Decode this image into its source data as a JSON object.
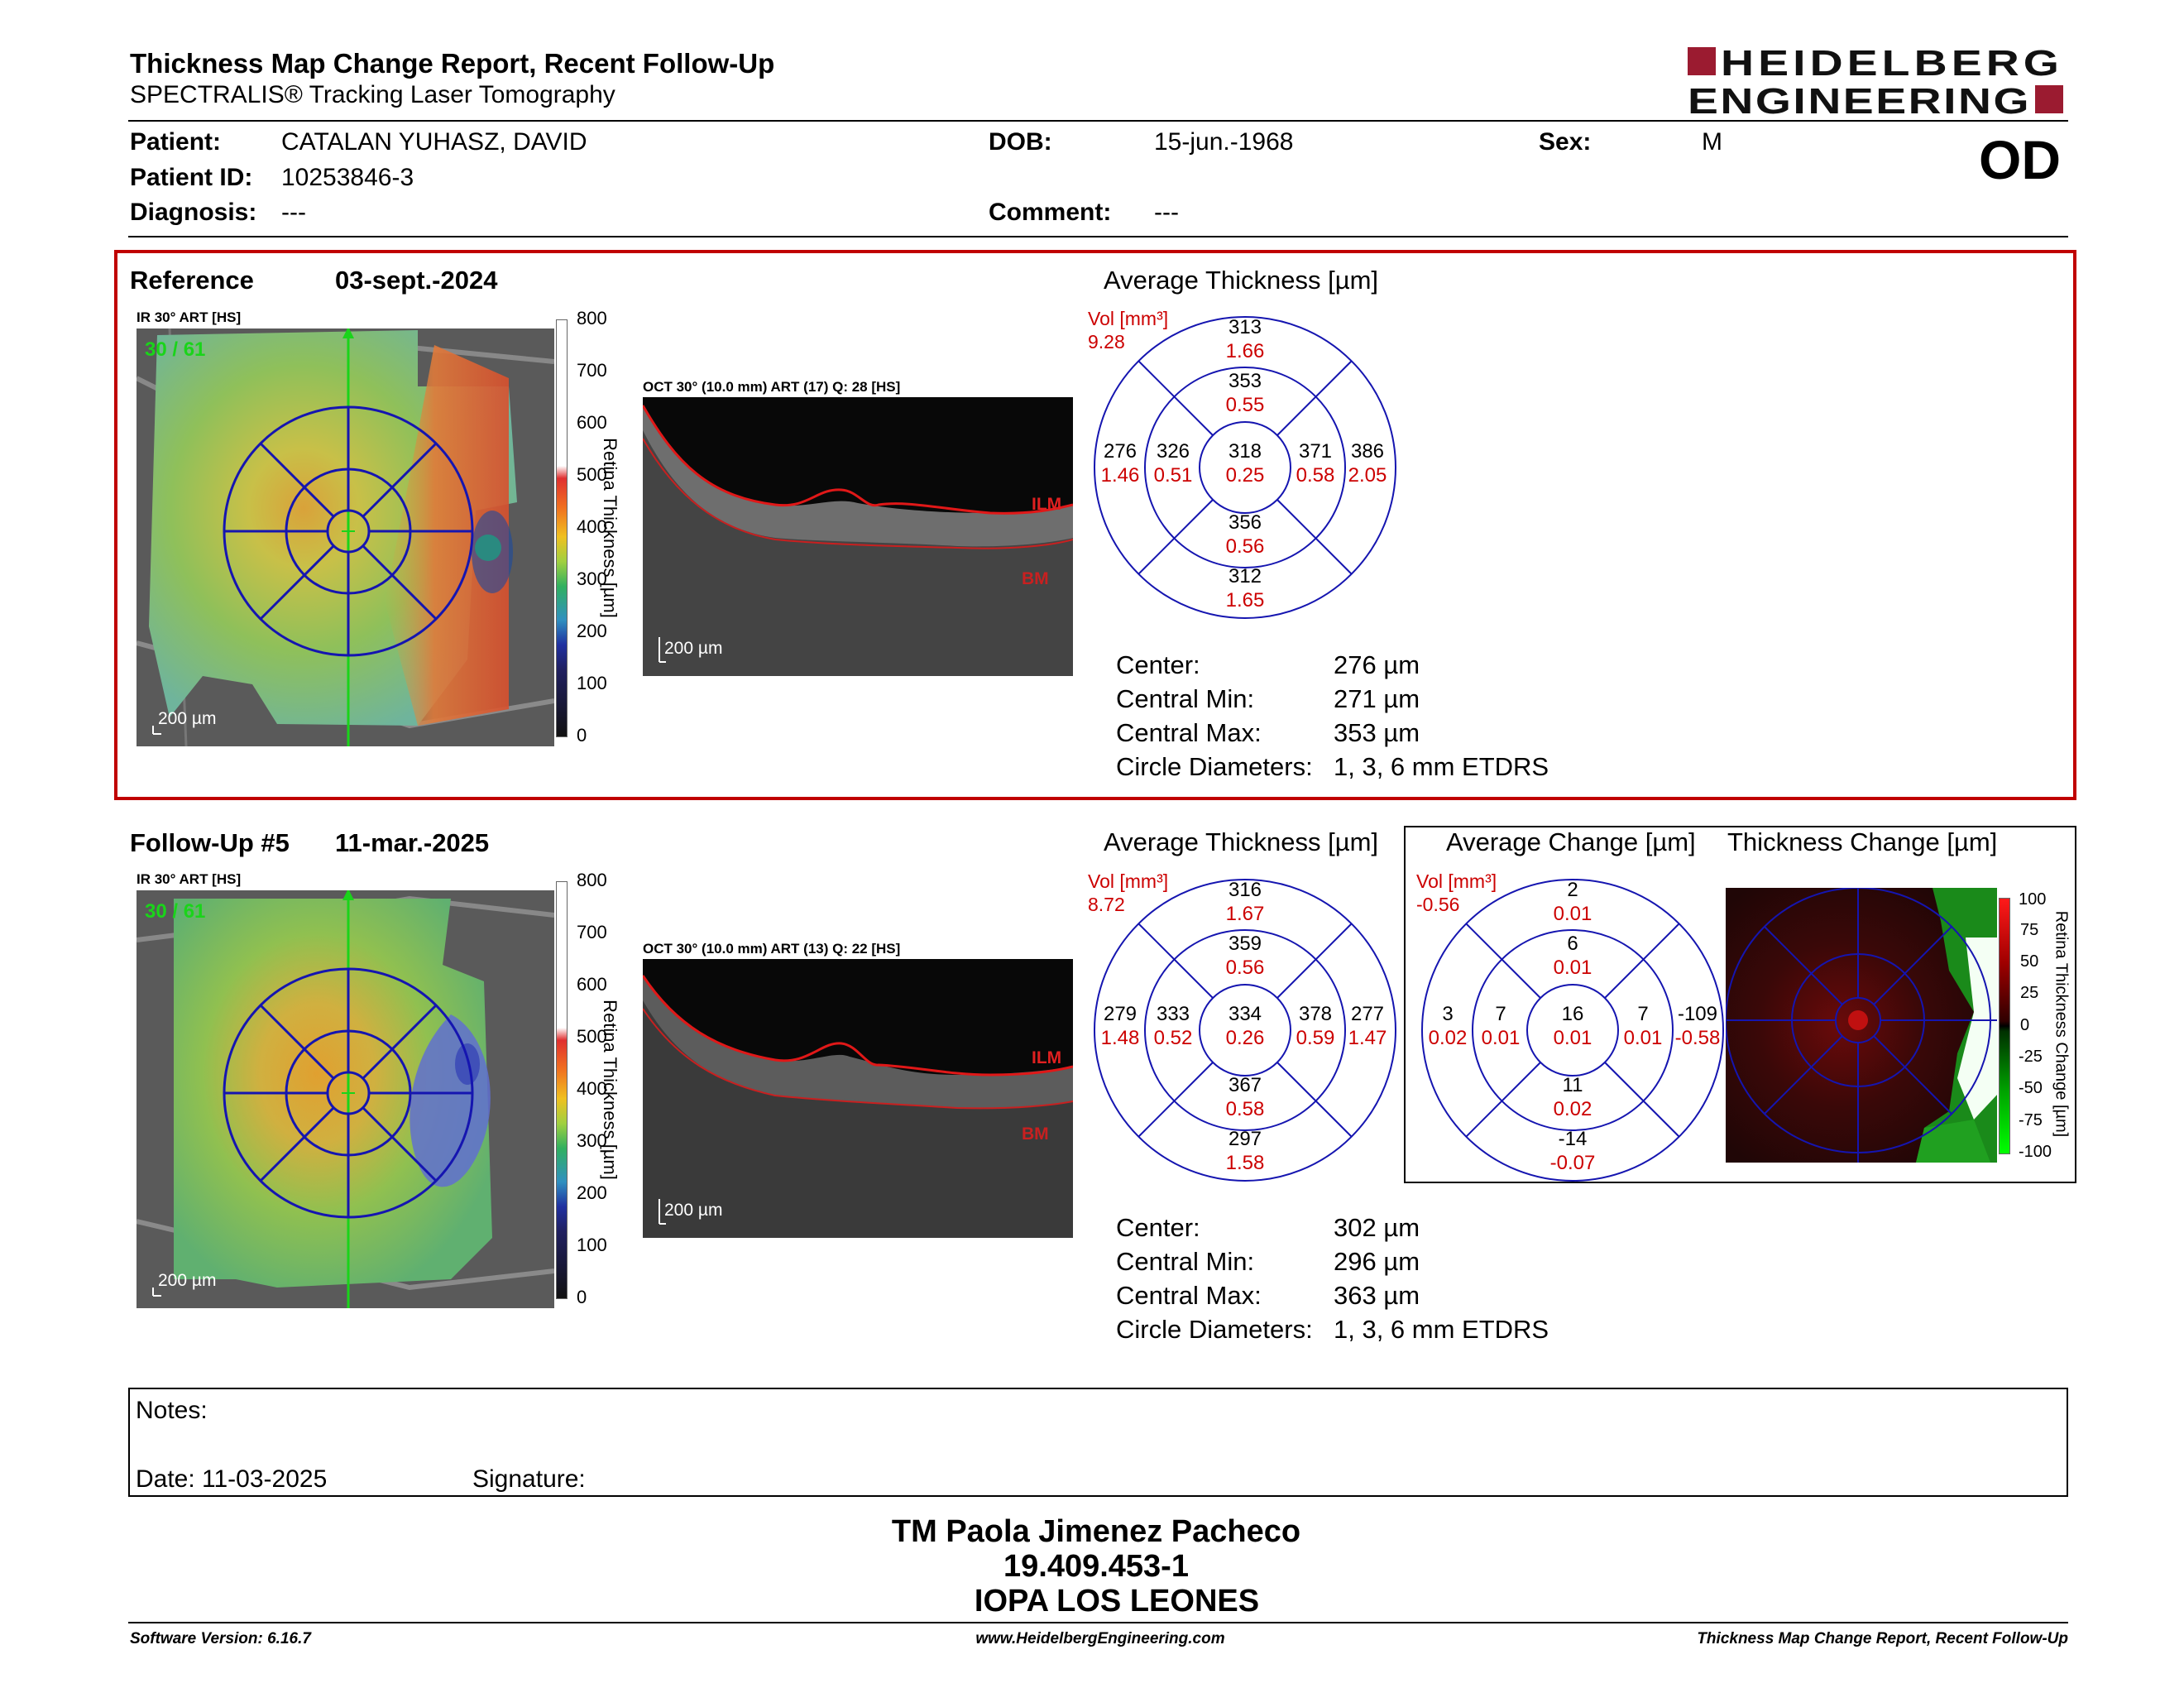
{
  "header": {
    "title": "Thickness Map Change Report, Recent Follow-Up",
    "subtitle": "SPECTRALIS® Tracking Laser Tomography",
    "logo_line1": "HEIDELBERG",
    "logo_line2": "ENGINEERING",
    "eye": "OD"
  },
  "patient": {
    "name_label": "Patient:",
    "name": "CATALAN YUHASZ, DAVID",
    "id_label": "Patient ID:",
    "id": "10253846-3",
    "diagnosis_label": "Diagnosis:",
    "diagnosis": "---",
    "dob_label": "DOB:",
    "dob": "15-jun.-1968",
    "comment_label": "Comment:",
    "comment": "---",
    "sex_label": "Sex:",
    "sex": "M"
  },
  "reference": {
    "label": "Reference",
    "date": "03-sept.-2024",
    "ir_label": "IR 30° ART [HS]",
    "ir_art": "30 / 61",
    "ir_scale": "200 µm",
    "colorbar_ticks": [
      "800",
      "700",
      "600",
      "500",
      "400",
      "300",
      "200",
      "100",
      "0"
    ],
    "colorbar_title": "Retina Thickness [µm]",
    "oct_label": "OCT 30° (10.0 mm) ART (17) Q: 28 [HS]",
    "oct_scale": "200 µm",
    "ilm": "ILM",
    "bm": "BM",
    "thickness_title": "Average Thickness [µm]",
    "vol_label": "Vol [mm³]",
    "vol_value": "9.28",
    "etdrs": {
      "center": {
        "t": "318",
        "v": "0.25"
      },
      "inner_sup": {
        "t": "353",
        "v": "0.55"
      },
      "inner_nas": {
        "t": "326",
        "v": "0.51"
      },
      "inner_temp": {
        "t": "371",
        "v": "0.58"
      },
      "inner_inf": {
        "t": "356",
        "v": "0.56"
      },
      "outer_sup": {
        "t": "313",
        "v": "1.66"
      },
      "outer_nas": {
        "t": "276",
        "v": "1.46"
      },
      "outer_temp": {
        "t": "386",
        "v": "2.05"
      },
      "outer_inf": {
        "t": "312",
        "v": "1.65"
      }
    },
    "stats": [
      {
        "k": "Center:",
        "v": "276 µm"
      },
      {
        "k": "Central Min:",
        "v": "271 µm"
      },
      {
        "k": "Central Max:",
        "v": "353 µm"
      },
      {
        "k": "Circle Diameters:",
        "v": "1, 3, 6 mm ETDRS"
      }
    ]
  },
  "followup": {
    "label": "Follow-Up #5",
    "date": "11-mar.-2025",
    "ir_label": "IR 30° ART [HS]",
    "ir_art": "30 / 61",
    "ir_scale": "200 µm",
    "colorbar_ticks": [
      "800",
      "700",
      "600",
      "500",
      "400",
      "300",
      "200",
      "100",
      "0"
    ],
    "colorbar_title": "Retina Thickness [µm]",
    "oct_label": "OCT 30° (10.0 mm) ART (13) Q: 22 [HS]",
    "oct_scale": "200 µm",
    "ilm": "ILM",
    "bm": "BM",
    "thickness_title": "Average Thickness [µm]",
    "vol_label": "Vol [mm³]",
    "vol_value": "8.72",
    "etdrs": {
      "center": {
        "t": "334",
        "v": "0.26"
      },
      "inner_sup": {
        "t": "359",
        "v": "0.56"
      },
      "inner_nas": {
        "t": "333",
        "v": "0.52"
      },
      "inner_temp": {
        "t": "378",
        "v": "0.59"
      },
      "inner_inf": {
        "t": "367",
        "v": "0.58"
      },
      "outer_sup": {
        "t": "316",
        "v": "1.67"
      },
      "outer_nas": {
        "t": "279",
        "v": "1.48"
      },
      "outer_temp": {
        "t": "277",
        "v": "1.47"
      },
      "outer_inf": {
        "t": "297",
        "v": "1.58"
      }
    },
    "stats": [
      {
        "k": "Center:",
        "v": "302 µm"
      },
      {
        "k": "Central Min:",
        "v": "296 µm"
      },
      {
        "k": "Central Max:",
        "v": "363 µm"
      },
      {
        "k": "Circle Diameters:",
        "v": "1, 3, 6 mm ETDRS"
      }
    ],
    "change_title": "Average Change [µm]",
    "change_vol_label": "Vol [mm³]",
    "change_vol_value": "-0.56",
    "change": {
      "center": {
        "t": "16",
        "v": "0.01"
      },
      "inner_sup": {
        "t": "6",
        "v": "0.01"
      },
      "inner_nas": {
        "t": "7",
        "v": "0.01"
      },
      "inner_temp": {
        "t": "7",
        "v": "0.01"
      },
      "inner_inf": {
        "t": "11",
        "v": "0.02"
      },
      "outer_sup": {
        "t": "2",
        "v": "0.01"
      },
      "outer_nas": {
        "t": "3",
        "v": "0.02"
      },
      "outer_temp": {
        "t": "-109",
        "v": "-0.58"
      },
      "outer_inf": {
        "t": "-14",
        "v": "-0.07"
      }
    },
    "change_map_title": "Thickness Change [µm]",
    "change_ticks": [
      "100",
      "75",
      "50",
      "25",
      "0",
      "-25",
      "-50",
      "-75",
      "-100"
    ],
    "change_colorbar_title": "Retina Thickness Change [µm]"
  },
  "notes": {
    "label": "Notes:",
    "date_label": "Date: 11-03-2025",
    "signature_label": "Signature:"
  },
  "signature_block": {
    "name": "TM Paola Jimenez Pacheco",
    "rut": "19.409.453-1",
    "institution": "IOPA LOS LEONES"
  },
  "footer": {
    "software": "Software Version: 6.16.7",
    "website": "www.HeidelbergEngineering.com",
    "report": "Thickness Map Change Report, Recent Follow-Up"
  }
}
